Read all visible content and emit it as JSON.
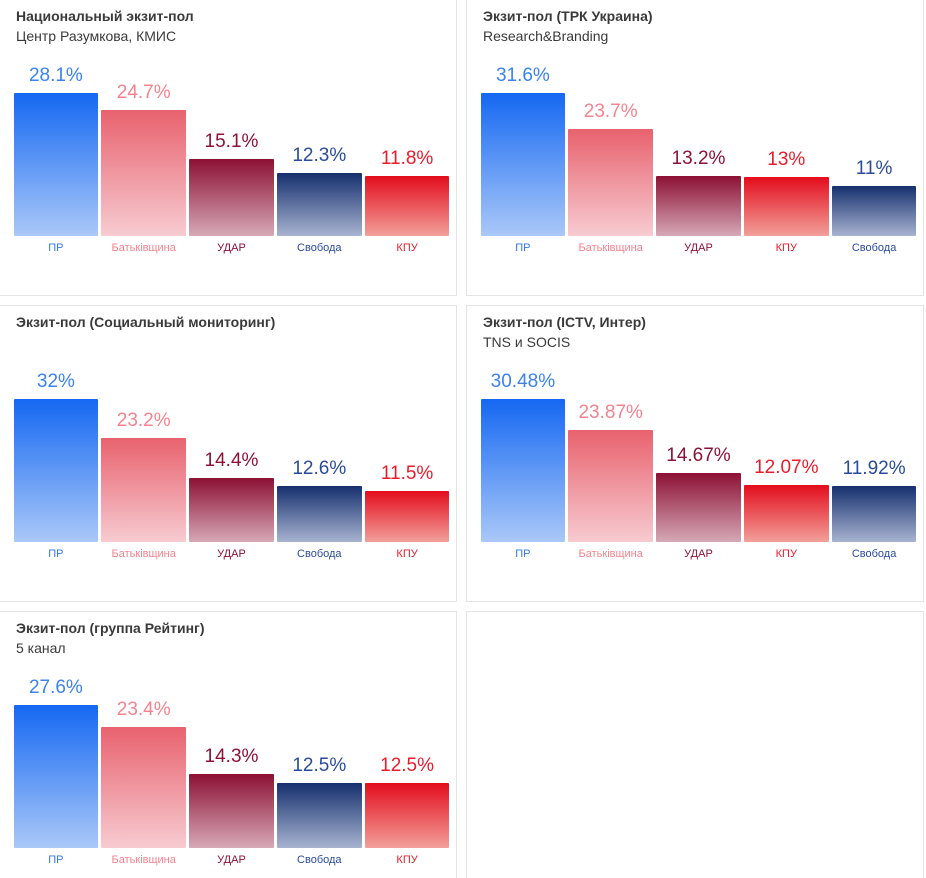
{
  "theme": {
    "background": "#ffffff",
    "panel_border": "#e4e4e4",
    "title_color": "#3a3a3a"
  },
  "party_styles": {
    "pr": {
      "name": "ПР",
      "value_color": "#3b82f0",
      "category_color": "#3377e8",
      "bar_top": "#1568f2",
      "bar_bottom": "#aac8f8"
    },
    "bat": {
      "name": "Батьківщина",
      "value_color": "#f5838e",
      "category_color": "#f5838e",
      "bar_top": "#e8626e",
      "bar_bottom": "#f7cbd1"
    },
    "udar": {
      "name": "УДАР",
      "value_color": "#8e1136",
      "category_color": "#8e1136",
      "bar_top": "#8c1034",
      "bar_bottom": "#d6a9b7"
    },
    "svoboda": {
      "name": "Свобода",
      "value_color": "#2a4b9b",
      "category_color": "#2a4b9b",
      "bar_top": "#16306e",
      "bar_bottom": "#a8b3d0"
    },
    "kpu": {
      "name": "КПУ",
      "value_color": "#ea1c2c",
      "category_color": "#ea1c2c",
      "bar_top": "#e30d1d",
      "bar_bottom": "#f2a09a"
    }
  },
  "chart_data": [
    {
      "type": "bar",
      "title": "Национальный экзит-пол",
      "subtitle": "Центр Разумкова, КМИС",
      "categories": [
        "ПР",
        "Батьківщина",
        "УДАР",
        "Свобода",
        "КПУ"
      ],
      "party_keys": [
        "pr",
        "bat",
        "udar",
        "svoboda",
        "kpu"
      ],
      "values": [
        28.1,
        24.7,
        15.1,
        12.3,
        11.8
      ],
      "value_labels": [
        "28.1%",
        "24.7%",
        "15.1%",
        "12.3%",
        "11.8%"
      ]
    },
    {
      "type": "bar",
      "title": "Экзит-пол (ТРК Украина)",
      "subtitle": "Research&Branding",
      "categories": [
        "ПР",
        "Батьківщина",
        "УДАР",
        "КПУ",
        "Свобода"
      ],
      "party_keys": [
        "pr",
        "bat",
        "udar",
        "kpu",
        "svoboda"
      ],
      "values": [
        31.6,
        23.7,
        13.2,
        13,
        11
      ],
      "value_labels": [
        "31.6%",
        "23.7%",
        "13.2%",
        "13%",
        "11%"
      ]
    },
    {
      "type": "bar",
      "title": "Экзит-пол (Социальный мониторинг)",
      "subtitle": "",
      "categories": [
        "ПР",
        "Батьківщина",
        "УДАР",
        "Свобода",
        "КПУ"
      ],
      "party_keys": [
        "pr",
        "bat",
        "udar",
        "svoboda",
        "kpu"
      ],
      "values": [
        32,
        23.2,
        14.4,
        12.6,
        11.5
      ],
      "value_labels": [
        "32%",
        "23.2%",
        "14.4%",
        "12.6%",
        "11.5%"
      ]
    },
    {
      "type": "bar",
      "title": "Экзит-пол (ICTV, Интер)",
      "subtitle": "TNS и SOCIS",
      "categories": [
        "ПР",
        "Батьківщина",
        "УДАР",
        "КПУ",
        "Свобода"
      ],
      "party_keys": [
        "pr",
        "bat",
        "udar",
        "kpu",
        "svoboda"
      ],
      "values": [
        30.48,
        23.87,
        14.67,
        12.07,
        11.92
      ],
      "value_labels": [
        "30.48%",
        "23.87%",
        "14.67%",
        "12.07%",
        "11.92%"
      ]
    },
    {
      "type": "bar",
      "title": "Экзит-пол (группа Рейтинг)",
      "subtitle": "5 канал",
      "categories": [
        "ПР",
        "Батьківщина",
        "УДАР",
        "Свобода",
        "КПУ"
      ],
      "party_keys": [
        "pr",
        "bat",
        "udar",
        "svoboda",
        "kpu"
      ],
      "values": [
        27.6,
        23.4,
        14.3,
        12.5,
        12.5
      ],
      "value_labels": [
        "27.6%",
        "23.4%",
        "14.3%",
        "12.5%",
        "12.5%"
      ]
    }
  ]
}
